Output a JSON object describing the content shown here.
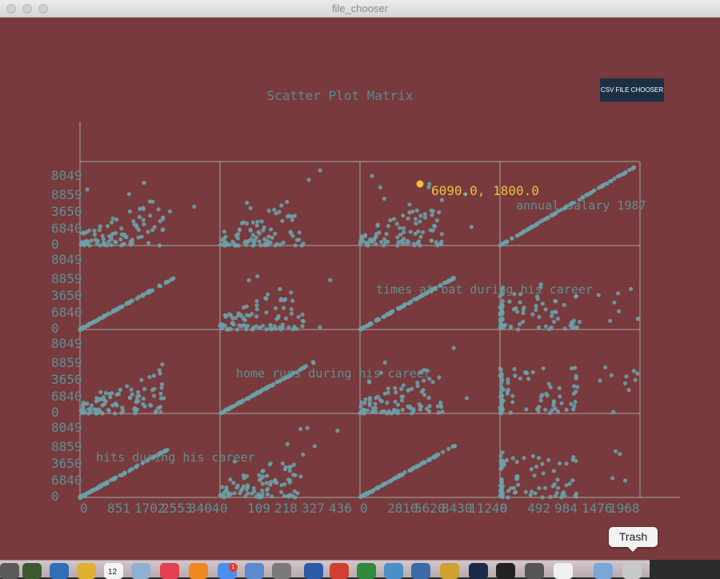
{
  "window": {
    "title": "file_chooser"
  },
  "toolbar": {
    "csv_button_label": "CSV FILE CHOOSER"
  },
  "tooltip": {
    "text": "Trash"
  },
  "colors": {
    "background": "#783a3c",
    "point": "#6aa0a8",
    "grid": "#a8a8a8",
    "label": "#5f8f95",
    "highlight": "#f0c040",
    "button": "#1b3044"
  },
  "chart_data": {
    "type": "scatter",
    "title": "Scatter Plot Matrix",
    "variables": [
      "annual salary 1987",
      "times at bat during his career",
      "home runs during his career",
      "hits during his career"
    ],
    "x_tick_labels": [
      [
        "0",
        "851",
        "1702",
        "2553",
        "3404"
      ],
      [
        "0",
        "109",
        "218",
        "327",
        "436"
      ],
      [
        "0",
        "2810",
        "5620",
        "8430",
        "11240"
      ],
      [
        "0",
        "492",
        "984",
        "1476",
        "1968"
      ]
    ],
    "highlight": {
      "x": 6090.0,
      "y": 1800.0,
      "label": "6090.0, 1800.0"
    },
    "grid": true
  },
  "dock": {
    "icons": [
      "finder-icon",
      "activity-monitor-icon",
      "safari-icon",
      "chrome-icon",
      "calendar-icon",
      "preview-icon",
      "music-icon",
      "books-icon",
      "app-store-icon",
      "xcode-icon",
      "system-prefs-icon",
      "word-icon",
      "java-icon",
      "excel-icon",
      "network-icon",
      "flow-icon",
      "rainbow-icon",
      "processing-icon",
      "terminal-icon",
      "sublime-icon",
      "jar-icon",
      "folder-icon",
      "trash-icon"
    ],
    "app_store_badge": "1",
    "calendar_date": "12"
  }
}
